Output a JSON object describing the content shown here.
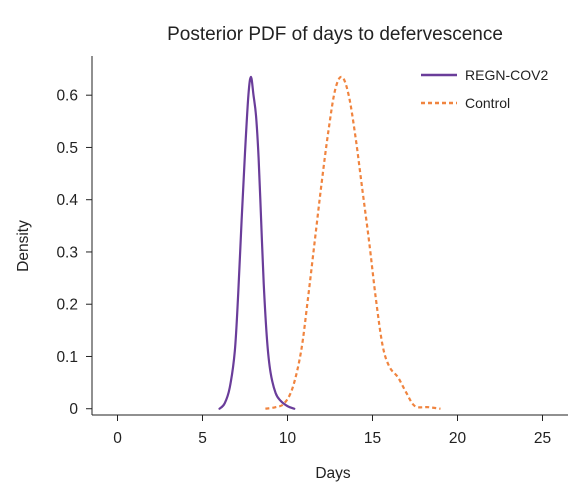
{
  "chart_data": {
    "type": "line",
    "title": "Posterior PDF of days to defervescence",
    "xlabel": "Days",
    "ylabel": "Density",
    "xlim": [
      -1.5,
      26.5
    ],
    "ylim": [
      -0.012,
      0.675
    ],
    "xticks": [
      0,
      5,
      10,
      15,
      20,
      25
    ],
    "yticks": [
      0,
      0.1,
      0.2,
      0.3,
      0.4,
      0.5,
      0.6
    ],
    "grid": false,
    "legend_position": "top-right",
    "series": [
      {
        "name": "REGN-COV2",
        "color": "#6a3d9a",
        "style": "solid",
        "x": [
          6.0,
          6.3,
          6.6,
          6.9,
          7.1,
          7.3,
          7.5,
          7.7,
          7.85,
          8.0,
          8.15,
          8.3,
          8.45,
          8.6,
          8.8,
          9.0,
          9.3,
          9.6,
          10.0,
          10.4
        ],
        "y": [
          0.0,
          0.01,
          0.04,
          0.11,
          0.22,
          0.36,
          0.49,
          0.6,
          0.635,
          0.6,
          0.56,
          0.48,
          0.36,
          0.24,
          0.13,
          0.07,
          0.03,
          0.015,
          0.005,
          0.0
        ]
      },
      {
        "name": "Control",
        "color": "#f0843f",
        "style": "dashed",
        "x": [
          8.7,
          9.3,
          9.8,
          10.3,
          10.8,
          11.2,
          11.6,
          12.0,
          12.4,
          12.8,
          13.2,
          13.6,
          14.0,
          14.4,
          14.8,
          15.2,
          15.6,
          16.0,
          16.5,
          17.0,
          17.5,
          18.3,
          19.0
        ],
        "y": [
          0.0,
          0.003,
          0.01,
          0.04,
          0.11,
          0.21,
          0.32,
          0.43,
          0.53,
          0.61,
          0.635,
          0.6,
          0.52,
          0.42,
          0.32,
          0.21,
          0.12,
          0.08,
          0.06,
          0.03,
          0.005,
          0.003,
          0.0
        ]
      }
    ]
  }
}
